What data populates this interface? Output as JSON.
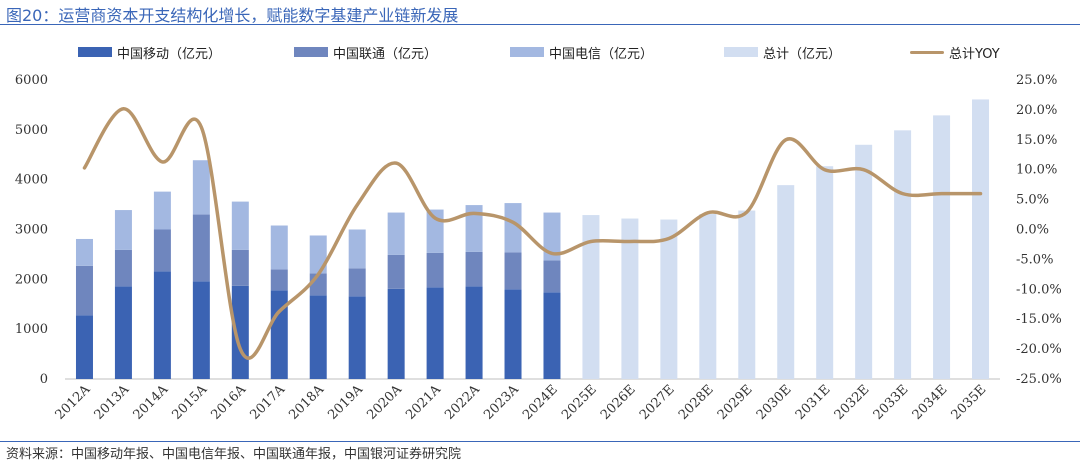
{
  "figure": {
    "title": "图20：运营商资本开支结构化增长，赋能数字基建产业链新发展",
    "source": "资料来源：中国移动年报、中国电信年报、中国联通年报，中国银河证券研究院"
  },
  "colors": {
    "china_mobile": "#3b63b3",
    "china_unicom": "#6f86be",
    "china_telecom": "#a3b8e1",
    "total": "#d2def1",
    "yoy": "#b8956a",
    "rule": "#3a66b8"
  },
  "chart_data": {
    "type": "bar",
    "title": "",
    "categories": [
      "2012A",
      "2013A",
      "2014A",
      "2015A",
      "2016A",
      "2017A",
      "2018A",
      "2019A",
      "2020A",
      "2021A",
      "2022A",
      "2023A",
      "2024E",
      "2025E",
      "2026E",
      "2027E",
      "2028E",
      "2029E",
      "2030E",
      "2031E",
      "2032E",
      "2033E",
      "2034E",
      "2035E"
    ],
    "series": [
      {
        "name": "中国移动（亿元）",
        "kind": "stacked-bar",
        "color_key": "china_mobile",
        "values": [
          1280,
          1860,
          2160,
          1960,
          1870,
          1780,
          1680,
          1660,
          1810,
          1840,
          1860,
          1800,
          1740,
          null,
          null,
          null,
          null,
          null,
          null,
          null,
          null,
          null,
          null,
          null
        ]
      },
      {
        "name": "中国联通（亿元）",
        "kind": "stacked-bar",
        "color_key": "china_unicom",
        "values": [
          990,
          730,
          840,
          1340,
          720,
          420,
          440,
          560,
          680,
          690,
          690,
          740,
          640,
          null,
          null,
          null,
          null,
          null,
          null,
          null,
          null,
          null,
          null,
          null
        ]
      },
      {
        "name": "中国电信（亿元）",
        "kind": "stacked-bar",
        "color_key": "china_telecom",
        "values": [
          540,
          800,
          760,
          1090,
          970,
          880,
          760,
          780,
          850,
          870,
          940,
          990,
          960,
          null,
          null,
          null,
          null,
          null,
          null,
          null,
          null,
          null,
          null,
          null
        ]
      },
      {
        "name": "总计（亿元）",
        "kind": "bar",
        "color_key": "total",
        "values": [
          null,
          null,
          null,
          null,
          null,
          null,
          null,
          null,
          null,
          null,
          null,
          null,
          null,
          3290,
          3220,
          3200,
          3310,
          3380,
          3890,
          4270,
          4700,
          4990,
          5290,
          5610
        ]
      },
      {
        "name": "总计YOY",
        "kind": "line",
        "axis": "right",
        "color_key": "yoy",
        "values": [
          10.3,
          20.2,
          11.3,
          17.1,
          -20.0,
          -13.7,
          -7.5,
          4.1,
          11.1,
          1.9,
          2.7,
          1.2,
          -4.0,
          -2.0,
          -2.0,
          -1.5,
          2.8,
          2.9,
          15.0,
          10.0,
          10.0,
          6.0,
          6.0,
          6.0
        ]
      }
    ],
    "y_left": {
      "min": 0,
      "max": 6000,
      "ticks": [
        "0",
        "1000",
        "2000",
        "3000",
        "4000",
        "5000",
        "6000"
      ]
    },
    "y_right": {
      "min": -25,
      "max": 25,
      "ticks": [
        "-25.0%",
        "-20.0%",
        "-15.0%",
        "-10.0%",
        "-5.0%",
        "0.0%",
        "5.0%",
        "10.0%",
        "15.0%",
        "20.0%",
        "25.0%"
      ]
    },
    "grid": false,
    "legend_position": "top"
  }
}
